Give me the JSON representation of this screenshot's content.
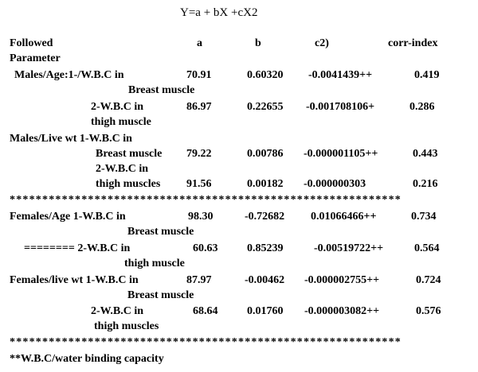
{
  "equation": "Y=a + bX +cX2",
  "headers": {
    "followed": "Followed",
    "parameter": "Parameter",
    "a": "a",
    "b": "b",
    "c": "c2)",
    "corr": "corr-index"
  },
  "rows": {
    "male_age_1": {
      "label": "Males/Age:1-/W.B.C in",
      "sub": "Breast muscle",
      "a": "70.91",
      "b": "0.60320",
      "c": "-0.0041439++",
      "r": "0.419"
    },
    "male_age_2": {
      "label": "2-W.B.C in",
      "sub": "thigh muscle",
      "a": "86.97",
      "b": "0.22655",
      "c": "-0.001708106+",
      "r": "0.286"
    },
    "male_wt_1": {
      "label": "Males/Live wt 1-W.B.C in",
      "sub": "Breast muscle",
      "a": "79.22",
      "b": "0.00786",
      "c": "-0.000001105++",
      "r": "0.443"
    },
    "male_wt_2": {
      "label": "2-W.B.C in",
      "sub": "thigh muscles",
      "a": "91.56",
      "b": "0.00182",
      "c": "-0.000000303",
      "r": "0.216"
    },
    "fem_age_1": {
      "label": "Females/Age 1-W.B.C in",
      "sub": "Breast muscle",
      "a": "98.30",
      "b": "-0.72682",
      "c": "0.01066466++",
      "r": "0.734"
    },
    "fem_age_2": {
      "label": "======== 2-W.B.C in",
      "sub": "thigh muscle",
      "a": "60.63",
      "b": "0.85239",
      "c": "-0.00519722++",
      "r": "0.564"
    },
    "fem_wt_1": {
      "label": "Females/live wt 1-W.B.C in",
      "sub": "Breast muscle",
      "a": "87.97",
      "b": "-0.00462",
      "c": "-0.000002755++",
      "r": "0.724"
    },
    "fem_wt_2": {
      "label": "2-W.B.C in",
      "sub": "thigh muscles",
      "a": "68.64",
      "b": "0.01760",
      "c": "-0.000003082++",
      "r": "0.576"
    }
  },
  "separator": "************************************************************",
  "footnote": "**W.B.C/water binding capacity"
}
